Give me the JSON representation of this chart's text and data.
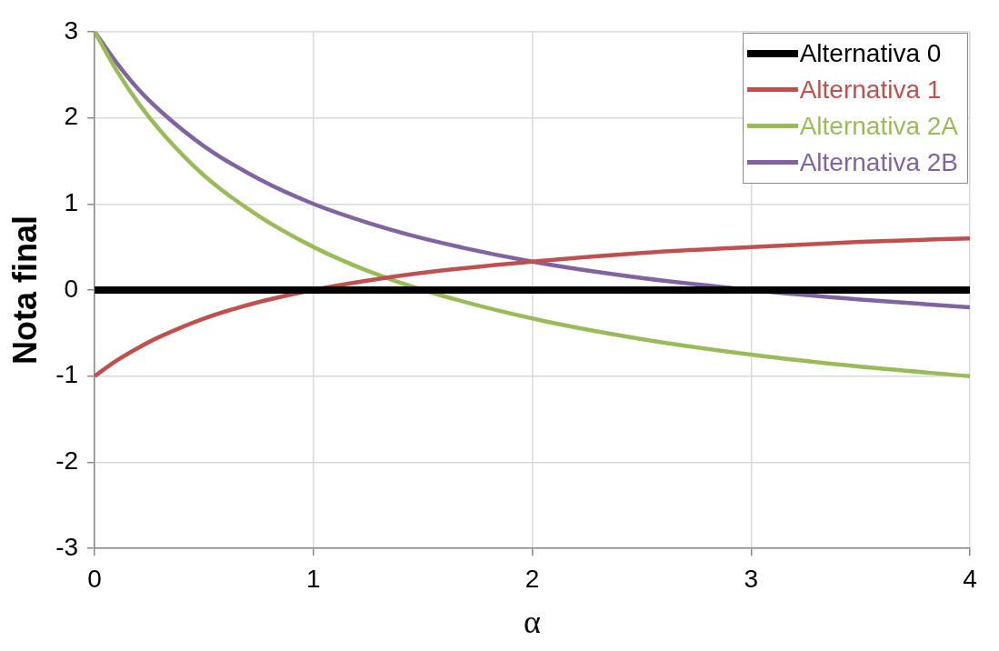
{
  "chart_data": {
    "type": "line",
    "xlabel": "α",
    "ylabel": "Nota final",
    "xlim": [
      0,
      4
    ],
    "xticks": [
      0,
      1,
      2,
      3,
      4
    ],
    "ylim": [
      -3,
      3
    ],
    "yticks": [
      -3,
      -2,
      -1,
      0,
      1,
      2,
      3
    ],
    "grid": true,
    "legend": "top right",
    "marker": "none",
    "line_style": "solid",
    "series": [
      {
        "name": "Alternativa 0",
        "color": "#000000",
        "x": [
          0,
          4
        ],
        "values": [
          0,
          0
        ]
      },
      {
        "name": "Alternativa 1",
        "color": "#c0504d",
        "x": [
          0,
          0.1,
          0.2,
          0.3,
          0.5,
          0.75,
          1,
          1.25,
          1.5,
          2,
          2.5,
          3,
          3.5,
          4
        ],
        "values": [
          -1,
          -0.82,
          -0.67,
          -0.54,
          -0.33,
          -0.14,
          0,
          0.11,
          0.2,
          0.33,
          0.43,
          0.5,
          0.56,
          0.6
        ]
      },
      {
        "name": "Alternativa 2A",
        "color": "#9bbb59",
        "x": [
          0,
          0.1,
          0.2,
          0.3,
          0.5,
          0.75,
          1,
          1.25,
          1.5,
          2,
          2.5,
          3,
          3.5,
          4
        ],
        "values": [
          3,
          2.55,
          2.17,
          1.85,
          1.33,
          0.86,
          0.5,
          0.22,
          0,
          -0.33,
          -0.57,
          -0.75,
          -0.89,
          -1
        ]
      },
      {
        "name": "Alternativa 2B",
        "color": "#8064a2",
        "x": [
          0,
          0.1,
          0.2,
          0.3,
          0.5,
          0.75,
          1,
          1.25,
          1.5,
          2,
          2.5,
          3,
          3.5,
          4
        ],
        "values": [
          3,
          2.64,
          2.33,
          2.08,
          1.67,
          1.29,
          1,
          0.78,
          0.6,
          0.33,
          0.14,
          0,
          -0.11,
          -0.2
        ]
      }
    ]
  }
}
